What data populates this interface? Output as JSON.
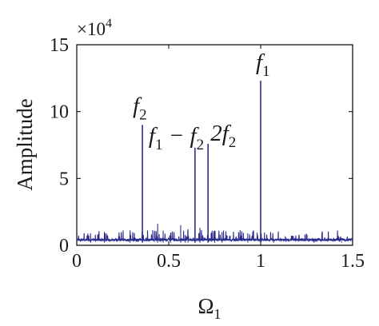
{
  "chart_data": {
    "type": "line",
    "xlabel": "Ω",
    "xlabel_sub": "1",
    "ylabel": "Amplitude",
    "y_multiplier": "×10",
    "y_multiplier_exp": "4",
    "xlim": [
      0,
      1.5
    ],
    "ylim": [
      0,
      15
    ],
    "x_ticks": [
      0,
      0.5,
      1,
      1.5
    ],
    "x_tick_labels": [
      "0",
      "0.5",
      "1",
      "1.5"
    ],
    "y_ticks": [
      0,
      5,
      10,
      15
    ],
    "y_tick_labels": [
      "0",
      "5",
      "10",
      "15"
    ],
    "grid": false,
    "line_color": "#2b2b8c",
    "peaks": [
      {
        "x": 0.357,
        "y": 9.0
      },
      {
        "x": 0.643,
        "y": 7.3
      },
      {
        "x": 0.714,
        "y": 7.6
      },
      {
        "x": 1.0,
        "y": 12.3
      }
    ],
    "minor_peaks": [
      {
        "x": 0.075,
        "y": 0.9
      },
      {
        "x": 0.15,
        "y": 1.0
      },
      {
        "x": 0.29,
        "y": 0.6
      },
      {
        "x": 0.44,
        "y": 1.6
      },
      {
        "x": 0.47,
        "y": 1.1
      },
      {
        "x": 0.51,
        "y": 0.9
      },
      {
        "x": 0.565,
        "y": 1.5
      },
      {
        "x": 0.59,
        "y": 0.7
      },
      {
        "x": 0.605,
        "y": 1.2
      },
      {
        "x": 0.67,
        "y": 1.3
      },
      {
        "x": 0.75,
        "y": 1.1
      },
      {
        "x": 0.79,
        "y": 1.0
      },
      {
        "x": 0.93,
        "y": 0.9
      },
      {
        "x": 1.07,
        "y": 0.4
      },
      {
        "x": 1.29,
        "y": 0.5
      },
      {
        "x": 1.44,
        "y": 0.3
      }
    ],
    "annotations": [
      {
        "text": "f",
        "sub": "2",
        "x": 0.357
      },
      {
        "text": "f",
        "sub": "1",
        "text2": " − f",
        "sub2": "2",
        "x": 0.643
      },
      {
        "text": "2f",
        "sub": "2",
        "x": 0.714
      },
      {
        "text": "f",
        "sub": "1",
        "x": 1.0
      }
    ]
  }
}
